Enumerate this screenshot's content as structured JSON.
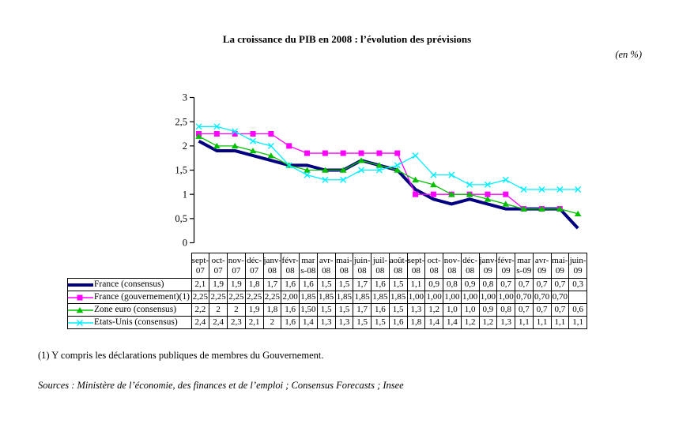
{
  "title": "La croissance du PIB en 2008 : l’évolution des prévisions",
  "unit_label": "(en %)",
  "footnote": "(1) Y compris les déclarations publiques de membres du Gouvernement.",
  "sources": "Sources : Ministère de l’économie, des finances et de l’emploi ; Consensus Forecasts ; Insee",
  "chart_data": {
    "type": "line",
    "title": "La croissance du PIB en 2008 : l’évolution des prévisions",
    "ylabel": "(en %)",
    "grid": false,
    "legend_position": "table-left-column",
    "y_axis": {
      "min": 0,
      "max": 3,
      "step": 0.5,
      "tick_labels": [
        "0",
        "0,5",
        "1",
        "1,5",
        "2",
        "2,5",
        "3"
      ]
    },
    "categories": [
      "sept-07",
      "oct-07",
      "nov-07",
      "déc-07",
      "janv-08",
      "févr-08",
      "mars-08",
      "avr-08",
      "mai-08",
      "juin-08",
      "juil-08",
      "août-08",
      "sept-08",
      "oct-08",
      "nov-08",
      "déc-08",
      "janv-09",
      "févr-09",
      "mars-09",
      "avr-09",
      "mai-09",
      "juin-09"
    ],
    "series": [
      {
        "name": "France (consensus)",
        "color": "#000080",
        "marker": "none",
        "line_width": 4,
        "values": [
          2.1,
          1.9,
          1.9,
          1.8,
          1.7,
          1.6,
          1.6,
          1.5,
          1.5,
          1.7,
          1.6,
          1.5,
          1.1,
          0.9,
          0.8,
          0.9,
          0.8,
          0.7,
          0.7,
          0.7,
          0.7,
          0.3
        ]
      },
      {
        "name": "France (gouvernement)(1)",
        "color": "#FF00FF",
        "marker": "square",
        "line_width": 1.3,
        "values": [
          2.25,
          2.25,
          2.25,
          2.25,
          2.25,
          2.0,
          1.85,
          1.85,
          1.85,
          1.85,
          1.85,
          1.85,
          1.0,
          1.0,
          1.0,
          1.0,
          1.0,
          1.0,
          0.7,
          0.7,
          0.7,
          null
        ]
      },
      {
        "name": "Zone euro (consensus)",
        "color": "#00C000",
        "marker": "triangle",
        "line_width": 1.3,
        "values": [
          2.2,
          2.0,
          2.0,
          1.9,
          1.8,
          1.6,
          1.5,
          1.5,
          1.5,
          1.7,
          1.6,
          1.5,
          1.3,
          1.2,
          1.0,
          1.0,
          0.9,
          0.8,
          0.7,
          0.7,
          0.7,
          0.6
        ]
      },
      {
        "name": "Etats-Unis (consensus)",
        "color": "#00F0FF",
        "marker": "x",
        "line_width": 1.3,
        "values": [
          2.4,
          2.4,
          2.3,
          2.1,
          2.0,
          1.6,
          1.4,
          1.3,
          1.3,
          1.5,
          1.5,
          1.6,
          1.8,
          1.4,
          1.4,
          1.2,
          1.2,
          1.3,
          1.1,
          1.1,
          1.1,
          1.1
        ]
      }
    ]
  },
  "table": {
    "col_headers_display": [
      "sept-\n07",
      "oct-\n07",
      "nov-\n07",
      "déc-\n07",
      "janv-\n08",
      "févr-\n08",
      "mar\ns-08",
      "avr-\n08",
      "mai-\n08",
      "juin-\n08",
      "juil-\n08",
      "août-\n08",
      "sept-\n08",
      "oct-\n08",
      "nov-\n08",
      "déc-\n08",
      "janv-\n09",
      "févr-\n09",
      "mar\ns-09",
      "avr-\n09",
      "mai-\n09",
      "juin-\n09"
    ],
    "rows": [
      {
        "label": "France (consensus)",
        "cells": [
          "2,1",
          "1,9",
          "1,9",
          "1,8",
          "1,7",
          "1,6",
          "1,6",
          "1,5",
          "1,5",
          "1,7",
          "1,6",
          "1,5",
          "1,1",
          "0,9",
          "0,8",
          "0,9",
          "0,8",
          "0,7",
          "0,7",
          "0,7",
          "0,7",
          "0,3"
        ]
      },
      {
        "label": "France (gouvernement)(1)",
        "cells": [
          "2,25",
          "2,25",
          "2,25",
          "2,25",
          "2,25",
          "2,00",
          "1,85",
          "1,85",
          "1,85",
          "1,85",
          "1,85",
          "1,85",
          "1,00",
          "1,00",
          "1,00",
          "1,00",
          "1,00",
          "1,00",
          "0,70",
          "0,70",
          "0,70",
          ""
        ]
      },
      {
        "label": "Zone euro (consensus)",
        "cells": [
          "2,2",
          "2",
          "2",
          "1,9",
          "1,8",
          "1,6",
          "1,50",
          "1,5",
          "1,5",
          "1,7",
          "1,6",
          "1,5",
          "1,3",
          "1,2",
          "1,0",
          "1,0",
          "0,9",
          "0,8",
          "0,7",
          "0,7",
          "0,7",
          "0,6"
        ]
      },
      {
        "label": "Etats-Unis (consensus)",
        "cells": [
          "2,4",
          "2,4",
          "2,3",
          "2,1",
          "2",
          "1,6",
          "1,4",
          "1,3",
          "1,3",
          "1,5",
          "1,5",
          "1,6",
          "1,8",
          "1,4",
          "1,4",
          "1,2",
          "1,2",
          "1,3",
          "1,1",
          "1,1",
          "1,1",
          "1,1"
        ]
      }
    ]
  }
}
